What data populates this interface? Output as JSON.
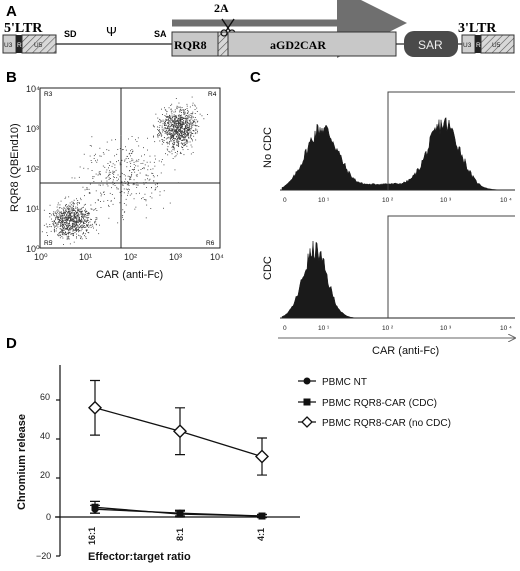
{
  "panel_A": {
    "letter": "A",
    "ltr5": "5'LTR",
    "ltr3": "3'LTR",
    "u3_left": "U3",
    "r_left": "R",
    "u5_left": "U5",
    "sd": "SD",
    "psi": "Ψ",
    "sa": "SA",
    "rqr8": "RQR8",
    "twoA": "2A",
    "agd2car": "aGD2CAR",
    "sar": "SAR",
    "u3_right": "U3",
    "r_right": "R",
    "u5_right": "U5"
  },
  "panel_B": {
    "letter": "B",
    "ylabel": "RQR8 (QBEnd10)",
    "xlabel": "CAR (anti-Fc)",
    "y_ticks": [
      "10⁴",
      "10³",
      "10²",
      "10¹",
      "10⁰"
    ],
    "x_ticks": [
      "10⁰",
      "10¹",
      "10²",
      "10³",
      "10⁴"
    ],
    "quadrants": [
      "R3",
      "R4",
      "R5",
      "R6"
    ]
  },
  "panel_C": {
    "letter": "C",
    "top_ylabel": "No CDC",
    "bottom_ylabel": "CDC",
    "xlabel": "CAR (anti-Fc)",
    "x_ticks_top": [
      "0",
      "10 ¹",
      "10 ²",
      "10 ³",
      "10 ⁴"
    ],
    "x_ticks_bottom": [
      "0",
      "10 ¹",
      "10 ²",
      "10 ³",
      "10 ⁴"
    ]
  },
  "panel_D": {
    "letter": "D",
    "chart_data": {
      "type": "line",
      "title": "",
      "ylabel": "Chromium release",
      "xlabel": "Effector:target ratio",
      "categories": [
        "16:1",
        "8:1",
        "4:1"
      ],
      "y_ticks": [
        "60",
        "40",
        "20",
        "0",
        "−20"
      ],
      "ylim": [
        -20,
        80
      ],
      "series": [
        {
          "name": "PBMC NT",
          "marker": "circle",
          "values": [
            4,
            2,
            0.5
          ],
          "err": [
            2,
            1.5,
            0.8
          ]
        },
        {
          "name": "PBMC RQR8-CAR (CDC)",
          "marker": "square",
          "values": [
            5,
            1.5,
            0.5
          ],
          "err": [
            3,
            1.5,
            0.8
          ]
        },
        {
          "name": "PBMC RQR8-CAR (no CDC)",
          "marker": "diamond",
          "values": [
            56,
            44,
            31
          ],
          "err": [
            14,
            12,
            9.5
          ]
        }
      ]
    }
  },
  "colors": {
    "hatch_box": "#bfbfbf",
    "gray_box": "#c8c8c8",
    "sar_box": "#4a4a4a",
    "arrow": "#6f6f6f",
    "histogram": "#1a1a1a",
    "dots": "#3a3a3a"
  }
}
